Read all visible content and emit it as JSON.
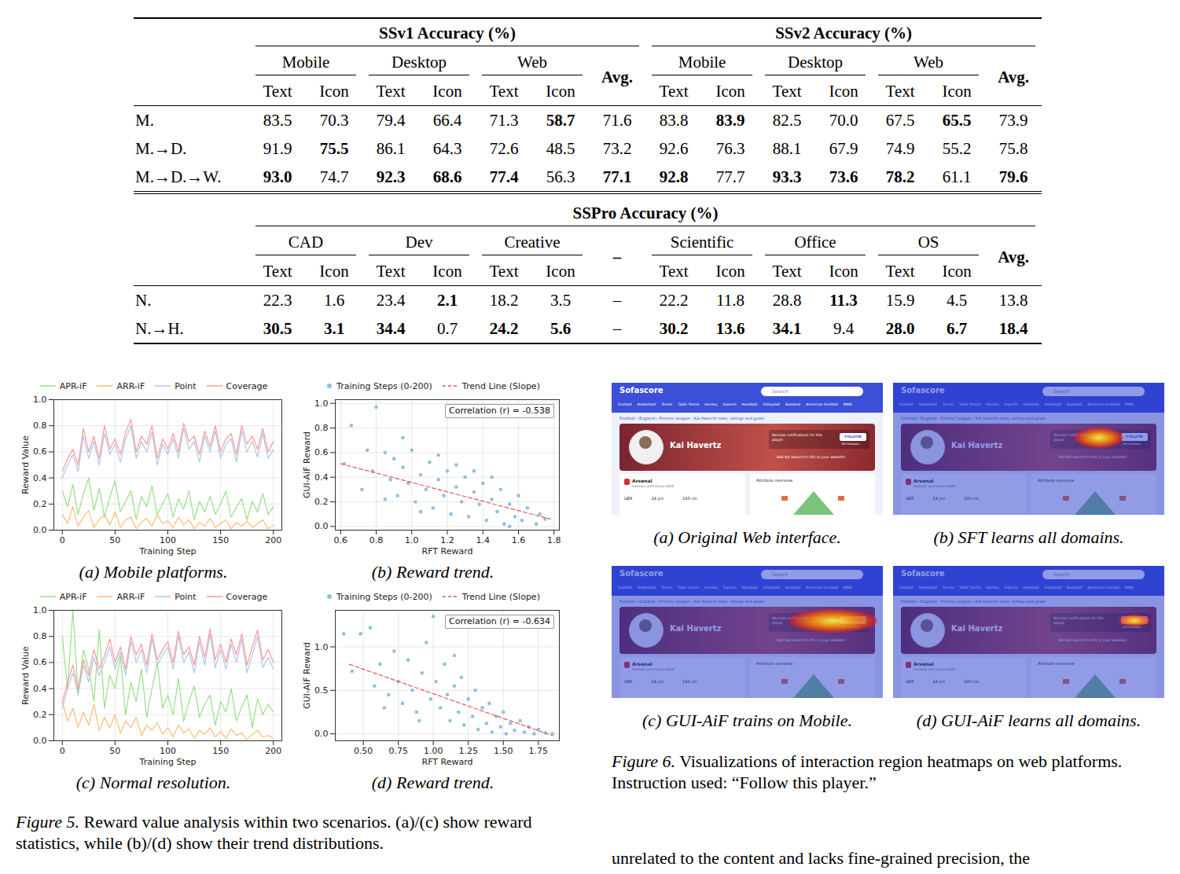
{
  "table": {
    "sections": [
      {
        "groups": [
          {
            "title": "SSv1 Accuracy (%)",
            "platforms": [
              "Mobile",
              "Desktop",
              "Web"
            ],
            "avg": "Avg."
          },
          {
            "title": "SSv2 Accuracy (%)",
            "platforms": [
              "Mobile",
              "Desktop",
              "Web"
            ],
            "avg": "Avg."
          }
        ],
        "subcolumns": [
          "Text",
          "Icon"
        ],
        "rows": [
          {
            "label": "M.",
            "cells": [
              "83.5",
              "70.3",
              "79.4",
              "66.4",
              "71.3",
              "58.7",
              "71.6",
              "83.8",
              "83.9",
              "82.5",
              "70.0",
              "67.5",
              "65.5",
              "73.9"
            ]
          },
          {
            "label": "M.→D.",
            "cells": [
              "91.9",
              "75.5",
              "86.1",
              "64.3",
              "72.6",
              "48.5",
              "73.2",
              "92.6",
              "76.3",
              "88.1",
              "67.9",
              "74.9",
              "55.2",
              "75.8"
            ]
          },
          {
            "label": "M.→D.→W.",
            "cells": [
              "93.0",
              "74.7",
              "92.3",
              "68.6",
              "77.4",
              "56.3",
              "77.1",
              "92.8",
              "77.7",
              "93.3",
              "73.6",
              "78.2",
              "61.1",
              "79.6"
            ]
          }
        ]
      },
      {
        "title": "SSPro Accuracy (%)",
        "groups": [
          {
            "platforms": [
              "CAD",
              "Dev",
              "Creative"
            ],
            "avg": "–"
          },
          {
            "platforms": [
              "Scientific",
              "Office",
              "OS"
            ],
            "avg": "Avg."
          }
        ],
        "subcolumns": [
          "Text",
          "Icon"
        ],
        "rows": [
          {
            "label": "N.",
            "cells": [
              "22.3",
              "1.6",
              "23.4",
              "2.1",
              "18.2",
              "3.5",
              "–",
              "22.2",
              "11.8",
              "28.8",
              "11.3",
              "15.9",
              "4.5",
              "13.8"
            ]
          },
          {
            "label": "N.→H.",
            "cells": [
              "30.5",
              "3.1",
              "34.4",
              "0.7",
              "24.2",
              "5.6",
              "–",
              "30.2",
              "13.6",
              "34.1",
              "9.4",
              "28.0",
              "6.7",
              "18.4"
            ]
          }
        ]
      }
    ]
  },
  "chart_data": [
    {
      "type": "line",
      "caption": "(a) Mobile platforms.",
      "x_label": "Training Step",
      "y_label": "Reward Value",
      "x": [
        0,
        5,
        10,
        15,
        20,
        25,
        30,
        35,
        40,
        45,
        50,
        55,
        60,
        65,
        70,
        75,
        80,
        85,
        90,
        95,
        100,
        105,
        110,
        115,
        120,
        125,
        130,
        135,
        140,
        145,
        150,
        155,
        160,
        165,
        170,
        175,
        180,
        185,
        190,
        195,
        200
      ],
      "series": [
        {
          "name": "APR-iF",
          "color": "#98df8a",
          "values": [
            0.3,
            0.18,
            0.35,
            0.12,
            0.28,
            0.4,
            0.15,
            0.32,
            0.1,
            0.25,
            0.38,
            0.14,
            0.22,
            0.3,
            0.08,
            0.26,
            0.18,
            0.34,
            0.12,
            0.2,
            0.28,
            0.1,
            0.24,
            0.16,
            0.3,
            0.08,
            0.22,
            0.14,
            0.26,
            0.12,
            0.2,
            0.3,
            0.1,
            0.18,
            0.24,
            0.08,
            0.22,
            0.14,
            0.28,
            0.12,
            0.18
          ]
        },
        {
          "name": "ARR-iF",
          "color": "#ffbb78",
          "values": [
            0.12,
            0.05,
            0.18,
            0.03,
            0.1,
            0.15,
            0.02,
            0.08,
            0.12,
            0.04,
            0.14,
            0.02,
            0.08,
            0.1,
            0.01,
            0.06,
            0.09,
            0.03,
            0.12,
            0.05,
            0.07,
            0.02,
            0.1,
            0.04,
            0.08,
            0.01,
            0.06,
            0.03,
            0.09,
            0.02,
            0.05,
            0.08,
            0.01,
            0.06,
            0.03,
            0.07,
            0.02,
            0.05,
            0.08,
            0.01,
            0.04
          ]
        },
        {
          "name": "Point",
          "color": "#aec7e8",
          "values": [
            0.4,
            0.5,
            0.58,
            0.45,
            0.72,
            0.55,
            0.68,
            0.5,
            0.74,
            0.58,
            0.66,
            0.52,
            0.7,
            0.8,
            0.55,
            0.68,
            0.6,
            0.75,
            0.5,
            0.66,
            0.58,
            0.7,
            0.55,
            0.78,
            0.62,
            0.68,
            0.52,
            0.72,
            0.6,
            0.76,
            0.55,
            0.66,
            0.7,
            0.52,
            0.76,
            0.6,
            0.68,
            0.56,
            0.74,
            0.55,
            0.62
          ]
        },
        {
          "name": "Coverage",
          "color": "#ff9896",
          "values": [
            0.45,
            0.55,
            0.62,
            0.5,
            0.78,
            0.6,
            0.72,
            0.55,
            0.8,
            0.62,
            0.7,
            0.58,
            0.75,
            0.85,
            0.6,
            0.72,
            0.66,
            0.8,
            0.55,
            0.7,
            0.62,
            0.74,
            0.6,
            0.82,
            0.68,
            0.72,
            0.58,
            0.76,
            0.64,
            0.8,
            0.6,
            0.7,
            0.74,
            0.58,
            0.8,
            0.66,
            0.72,
            0.62,
            0.78,
            0.6,
            0.68
          ]
        }
      ],
      "xlim": [
        -8,
        208
      ],
      "xticks": [
        0,
        50,
        100,
        150,
        200
      ],
      "ylim": [
        0,
        1
      ],
      "yticks": [
        {
          "value": 0,
          "label": "0.0"
        },
        0.2,
        0.4,
        0.6,
        0.8,
        {
          "value": 1,
          "label": "1.0"
        }
      ],
      "grid": true,
      "legend": "top"
    },
    {
      "type": "scatter",
      "caption": "(b) Reward trend.",
      "x_label": "RFT Reward",
      "y_label": "GUI-AiF Reward",
      "series": [
        {
          "name": "Training Steps (0-200)",
          "type": "scatter",
          "marker": "circle",
          "color": "#8ec1e0",
          "x": [
            0.62,
            0.66,
            0.8,
            0.72,
            0.78,
            0.85,
            0.88,
            0.9,
            0.92,
            0.95,
            0.98,
            1.0,
            1.02,
            1.05,
            1.08,
            1.1,
            1.12,
            1.15,
            1.18,
            1.2,
            1.22,
            1.25,
            1.28,
            1.3,
            1.32,
            1.35,
            1.38,
            1.4,
            1.42,
            1.45,
            1.48,
            1.5,
            1.52,
            1.55,
            1.58,
            1.6,
            1.62,
            1.65,
            1.7,
            1.75,
            0.75,
            0.95,
            1.15,
            1.25,
            1.35,
            1.05,
            0.85,
            1.45,
            1.55,
            1.72
          ],
          "y": [
            0.51,
            0.82,
            0.97,
            0.3,
            0.45,
            0.6,
            0.38,
            0.55,
            0.25,
            0.48,
            0.35,
            0.62,
            0.2,
            0.42,
            0.3,
            0.52,
            0.15,
            0.38,
            0.25,
            0.45,
            0.1,
            0.32,
            0.2,
            0.4,
            0.08,
            0.28,
            0.18,
            0.35,
            0.05,
            0.22,
            0.12,
            0.3,
            0.02,
            0.18,
            0.08,
            0.25,
            0.05,
            0.15,
            0.02,
            0.06,
            0.62,
            0.72,
            0.58,
            0.5,
            0.45,
            0.12,
            0.22,
            0.4,
            0.0,
            0.1
          ]
        },
        {
          "name": "Trend Line (Slope)",
          "type": "line",
          "line_style": "dashed",
          "color": "#e8575a",
          "x": [
            0.6,
            1.78
          ],
          "y": [
            0.51,
            0.06
          ]
        }
      ],
      "annotations": [
        "Correlation (r) = -0.538"
      ],
      "xlim": [
        0.57,
        1.83
      ],
      "xticks": [
        0.6,
        0.8,
        {
          "value": 1,
          "label": "1.0"
        },
        1.2,
        1.4,
        1.6,
        1.8
      ],
      "ylim": [
        -0.03,
        1.03
      ],
      "yticks": [
        {
          "value": 0,
          "label": "0.0"
        },
        0.2,
        0.4,
        0.6,
        0.8,
        {
          "value": 1,
          "label": "1.0"
        }
      ],
      "grid": true,
      "legend": "top"
    },
    {
      "type": "line",
      "caption": "(c) Normal resolution.",
      "x_label": "Training Step",
      "y_label": "Reward Value",
      "x": [
        0,
        5,
        10,
        15,
        20,
        25,
        30,
        35,
        40,
        45,
        50,
        55,
        60,
        65,
        70,
        75,
        80,
        85,
        90,
        95,
        100,
        105,
        110,
        115,
        120,
        125,
        130,
        135,
        140,
        145,
        150,
        155,
        160,
        165,
        170,
        175,
        180,
        185,
        190,
        195,
        200
      ],
      "series": [
        {
          "name": "APR-iF",
          "color": "#98df8a",
          "values": [
            0.8,
            0.4,
            1.0,
            0.35,
            0.7,
            0.55,
            0.3,
            0.85,
            0.25,
            0.5,
            0.4,
            0.65,
            0.2,
            0.45,
            0.3,
            0.55,
            0.18,
            0.4,
            0.6,
            0.25,
            0.35,
            0.2,
            0.48,
            0.15,
            0.3,
            0.42,
            0.18,
            0.28,
            0.35,
            0.12,
            0.3,
            0.22,
            0.4,
            0.15,
            0.26,
            0.35,
            0.1,
            0.32,
            0.2,
            0.28,
            0.22
          ]
        },
        {
          "name": "ARR-iF",
          "color": "#ffbb78",
          "values": [
            0.3,
            0.15,
            0.25,
            0.1,
            0.22,
            0.12,
            0.28,
            0.08,
            0.18,
            0.1,
            0.2,
            0.06,
            0.15,
            0.1,
            0.18,
            0.04,
            0.12,
            0.08,
            0.14,
            0.05,
            0.1,
            0.03,
            0.12,
            0.06,
            0.09,
            0.02,
            0.08,
            0.05,
            0.1,
            0.03,
            0.07,
            0.02,
            0.09,
            0.04,
            0.06,
            0.01,
            0.05,
            0.08,
            0.03,
            0.04,
            0.02
          ]
        },
        {
          "name": "Point",
          "color": "#aec7e8",
          "values": [
            0.25,
            0.4,
            0.52,
            0.36,
            0.58,
            0.45,
            0.64,
            0.5,
            0.6,
            0.72,
            0.55,
            0.68,
            0.5,
            0.76,
            0.6,
            0.7,
            0.52,
            0.78,
            0.58,
            0.66,
            0.72,
            0.55,
            0.8,
            0.6,
            0.68,
            0.52,
            0.76,
            0.58,
            0.82,
            0.56,
            0.7,
            0.55,
            0.74,
            0.6,
            0.78,
            0.52,
            0.66,
            0.8,
            0.56,
            0.64,
            0.55
          ]
        },
        {
          "name": "Coverage",
          "color": "#ff9896",
          "values": [
            0.3,
            0.45,
            0.58,
            0.4,
            0.62,
            0.5,
            0.7,
            0.55,
            0.65,
            0.78,
            0.6,
            0.72,
            0.55,
            0.8,
            0.66,
            0.74,
            0.58,
            0.82,
            0.62,
            0.7,
            0.76,
            0.6,
            0.84,
            0.66,
            0.72,
            0.58,
            0.8,
            0.64,
            0.86,
            0.62,
            0.74,
            0.6,
            0.78,
            0.66,
            0.82,
            0.58,
            0.72,
            0.85,
            0.62,
            0.7,
            0.6
          ]
        }
      ],
      "xlim": [
        -8,
        208
      ],
      "xticks": [
        0,
        50,
        100,
        150,
        200
      ],
      "ylim": [
        0,
        1
      ],
      "yticks": [
        {
          "value": 0,
          "label": "0.0"
        },
        0.2,
        0.4,
        0.6,
        0.8,
        {
          "value": 1,
          "label": "1.0"
        }
      ],
      "grid": true,
      "legend": "top"
    },
    {
      "type": "scatter",
      "caption": "(d) Reward trend.",
      "x_label": "RFT Reward",
      "y_label": "GUI-AiF Reward",
      "series": [
        {
          "name": "Training Steps (0-200)",
          "type": "scatter",
          "marker": "circle",
          "color": "#8ec1e0",
          "x": [
            0.36,
            0.42,
            0.48,
            0.55,
            0.58,
            0.62,
            0.68,
            0.72,
            0.75,
            0.78,
            0.82,
            0.85,
            0.88,
            0.92,
            0.95,
            0.98,
            1.0,
            1.02,
            1.05,
            1.08,
            1.1,
            1.12,
            1.15,
            1.18,
            1.2,
            1.22,
            1.25,
            1.28,
            1.3,
            1.32,
            1.35,
            1.38,
            1.4,
            1.42,
            1.45,
            1.48,
            1.5,
            1.52,
            1.55,
            1.58,
            1.62,
            1.65,
            1.68,
            1.72,
            1.75,
            1.8,
            1.85,
            0.65,
            0.9,
            1.15
          ],
          "y": [
            1.15,
            0.72,
            1.15,
            1.22,
            0.55,
            0.8,
            0.45,
            0.95,
            0.6,
            0.35,
            0.85,
            0.5,
            0.25,
            0.7,
            1.05,
            0.4,
            1.35,
            0.6,
            0.3,
            0.8,
            0.45,
            0.15,
            0.55,
            0.25,
            0.65,
            0.1,
            0.4,
            0.2,
            0.5,
            0.05,
            0.3,
            0.12,
            0.35,
            0.02,
            0.2,
            0.08,
            0.25,
            0.0,
            0.12,
            0.04,
            0.15,
            0.02,
            0.08,
            0.0,
            0.05,
            0.01,
            0.0,
            0.3,
            0.15,
            0.9
          ]
        },
        {
          "name": "Trend Line (Slope)",
          "type": "line",
          "line_style": "dashed",
          "color": "#e8575a",
          "x": [
            0.4,
            1.85
          ],
          "y": [
            0.8,
            -0.02
          ]
        }
      ],
      "annotations": [
        "Correlation (r) = -0.634"
      ],
      "xlim": [
        0.3,
        1.9
      ],
      "xticks": [
        {
          "value": 0.5,
          "label": "0.50"
        },
        0.75,
        {
          "value": 1,
          "label": "1.00"
        },
        1.25,
        {
          "value": 1.5,
          "label": "1.50"
        },
        1.75
      ],
      "ylim": [
        -0.08,
        1.42
      ],
      "yticks": [
        {
          "value": 0,
          "label": "0.0"
        },
        0.5,
        {
          "value": 1,
          "label": "1.0"
        }
      ],
      "grid": true,
      "legend": "top"
    }
  ],
  "figure5_caption": {
    "label": "Figure 5.",
    "text": "Reward value analysis within two scenarios. (a)/(c) show reward statistics, while (b)/(d) show their trend distributions."
  },
  "figure6": {
    "screenshot": {
      "logo": "Sofascore",
      "search": "Search",
      "nav": [
        "Football",
        "Basketball",
        "Tennis",
        "Table Tennis",
        "Hockey",
        "Esports",
        "Handball",
        "Volleyball",
        "Baseball",
        "American Football",
        "MMA"
      ],
      "breadcrumb": "Football › England › Premier League › Kai Havertz stats, ratings and goals",
      "player": "Kai Havertz",
      "notify": "Receive notifications for this player",
      "follow": "FOLLOW",
      "followers": "39k followers",
      "embed": "Add Kai Havertz's info to your website!",
      "club": "Arsenal",
      "contract": "Contract until 30 Jun 2028",
      "facts": [
        "GER",
        "24 yrs",
        "193 cm"
      ],
      "attributes": "Attribute overview"
    },
    "panels": [
      {
        "caption": "(a) Original Web interface."
      },
      {
        "caption": "(b) SFT learns all domains."
      },
      {
        "caption": "(c) GUI-AiF trains on Mobile."
      },
      {
        "caption": "(d) GUI-AiF learns all domains."
      }
    ],
    "caption": {
      "label": "Figure 6.",
      "text": "Visualizations of interaction region heatmaps on web platforms. Instruction used: “Follow this player.”"
    }
  },
  "body_text": "unrelated to the content and lacks fine-grained precision, the"
}
